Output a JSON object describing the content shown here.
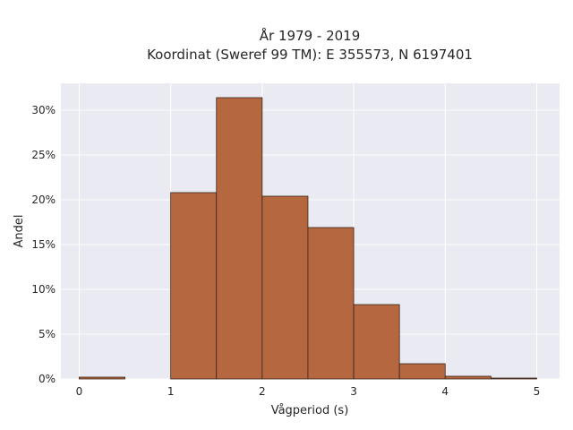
{
  "chart_data": {
    "type": "bar",
    "title": "År 1979 - 2019",
    "subtitle": "Koordinat (Sweref 99 TM): E 355573, N 6197401",
    "xlabel": "Vågperiod (s)",
    "ylabel": "Andel",
    "xlim": [
      -0.2,
      5.25
    ],
    "ylim": [
      0,
      33
    ],
    "x_ticks": [
      0,
      1,
      2,
      3,
      4,
      5
    ],
    "y_ticks": [
      0,
      5,
      10,
      15,
      20,
      25,
      30
    ],
    "y_tick_format": "%",
    "bins": [
      {
        "start": 0.0,
        "end": 0.5,
        "value": 0.2
      },
      {
        "start": 0.5,
        "end": 1.0,
        "value": 0.0
      },
      {
        "start": 1.0,
        "end": 1.5,
        "value": 20.8
      },
      {
        "start": 1.5,
        "end": 2.0,
        "value": 31.4
      },
      {
        "start": 2.0,
        "end": 2.5,
        "value": 20.4
      },
      {
        "start": 2.5,
        "end": 3.0,
        "value": 16.9
      },
      {
        "start": 3.0,
        "end": 3.5,
        "value": 8.3
      },
      {
        "start": 3.5,
        "end": 4.0,
        "value": 1.7
      },
      {
        "start": 4.0,
        "end": 4.5,
        "value": 0.3
      },
      {
        "start": 4.5,
        "end": 5.0,
        "value": 0.1
      }
    ],
    "grid": true,
    "legend": "none",
    "colors": {
      "bar_fill": "#b5683f",
      "bar_edge": "#3a2418",
      "plot_background": "#eaeaf2",
      "grid": "#ffffff"
    }
  }
}
